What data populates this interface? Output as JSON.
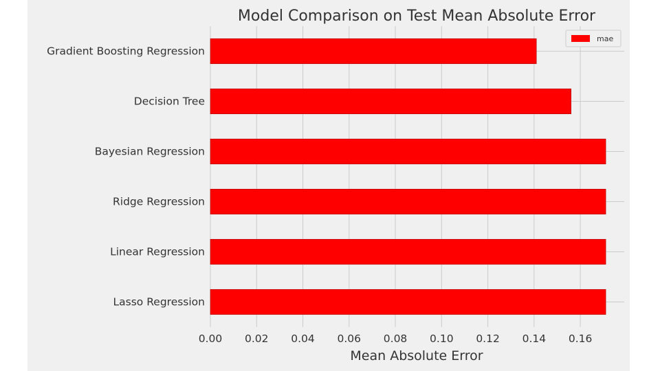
{
  "chart_data": {
    "type": "bar",
    "orientation": "horizontal",
    "title": "Model Comparison on Test Mean Absolute Error",
    "xlabel": "Mean Absolute Error",
    "ylabel": "",
    "categories": [
      "Gradient Boosting Regression",
      "Decision Tree",
      "Bayesian Regression",
      "Ridge Regression",
      "Linear Regression",
      "Lasso Regression"
    ],
    "series": [
      {
        "name": "mae",
        "values": [
          0.141,
          0.156,
          0.171,
          0.171,
          0.171,
          0.171
        ]
      }
    ],
    "xlim": [
      0,
      0.179
    ],
    "xticks": [
      "0.00",
      "0.02",
      "0.04",
      "0.06",
      "0.08",
      "0.10",
      "0.12",
      "0.14",
      "0.16"
    ],
    "grid": true,
    "legend_position": "top-right",
    "colors": {
      "bar": "#ff0000",
      "background": "#f0f0f0",
      "grid": "#cbcbcb"
    }
  }
}
